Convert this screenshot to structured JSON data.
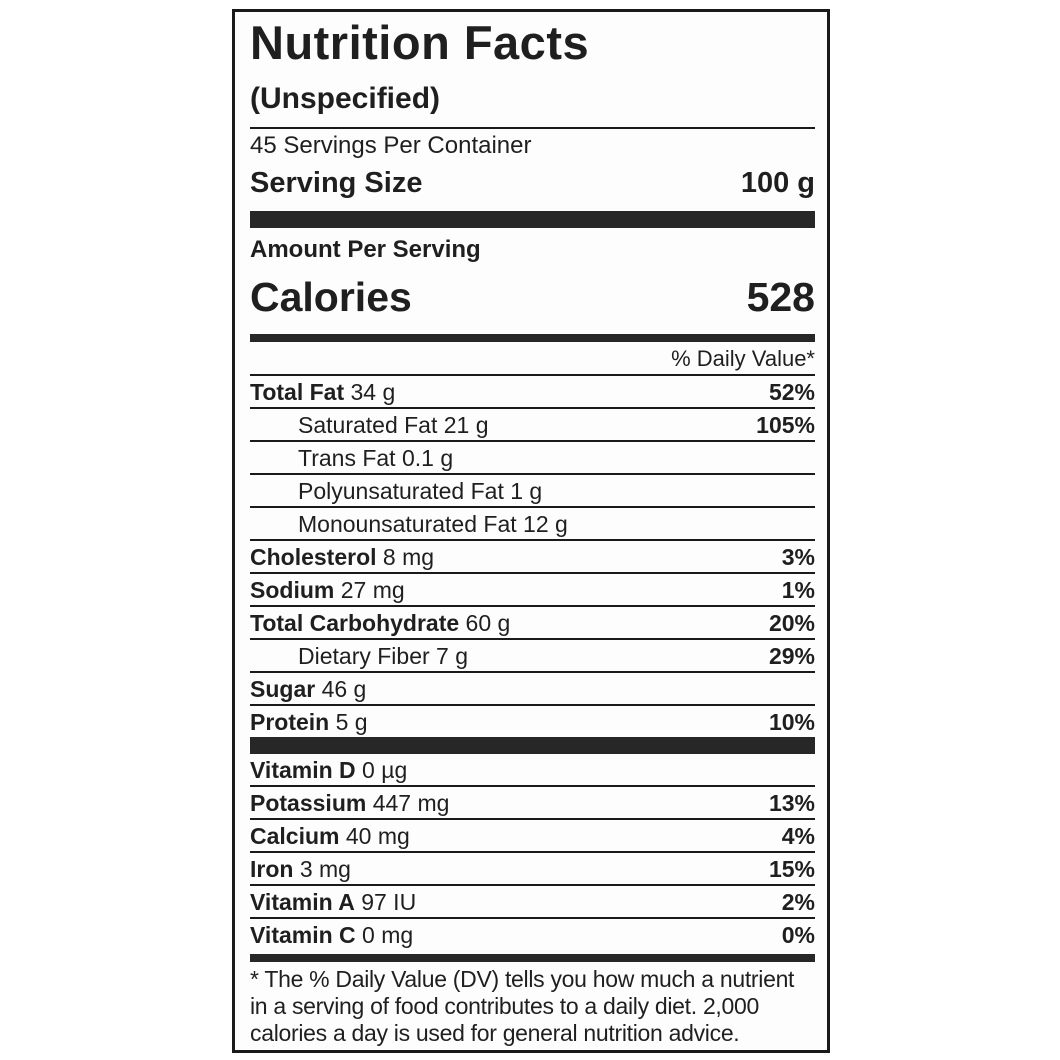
{
  "label": {
    "title": "Nutrition Facts",
    "subtitle": "(Unspecified)",
    "servings_per_container": "45 Servings Per Container",
    "serving_size_label": "Serving Size",
    "serving_size_value": "100 g",
    "amount_per_serving": "Amount Per Serving",
    "calories_label": "Calories",
    "calories_value": "528",
    "daily_value_header": "% Daily Value*",
    "nutrients": [
      {
        "name": "Total Fat",
        "amount": "34 g",
        "dv": "52%",
        "bold": true,
        "indent": false
      },
      {
        "name": "Saturated Fat",
        "amount": "21 g",
        "dv": "105%",
        "bold": false,
        "indent": true
      },
      {
        "name": "Trans Fat",
        "amount": "0.1 g",
        "dv": "",
        "bold": false,
        "indent": true
      },
      {
        "name": "Polyunsaturated Fat",
        "amount": "1 g",
        "dv": "",
        "bold": false,
        "indent": true
      },
      {
        "name": "Monounsaturated Fat",
        "amount": "12 g",
        "dv": "",
        "bold": false,
        "indent": true
      },
      {
        "name": "Cholesterol",
        "amount": "8 mg",
        "dv": "3%",
        "bold": true,
        "indent": false
      },
      {
        "name": "Sodium",
        "amount": "27 mg",
        "dv": "1%",
        "bold": true,
        "indent": false
      },
      {
        "name": "Total Carbohydrate",
        "amount": "60 g",
        "dv": "20%",
        "bold": true,
        "indent": false
      },
      {
        "name": "Dietary Fiber",
        "amount": "7 g",
        "dv": "29%",
        "bold": false,
        "indent": true
      },
      {
        "name": "Sugar",
        "amount": "46 g",
        "dv": "",
        "bold": true,
        "indent": false
      },
      {
        "name": "Protein",
        "amount": "5 g",
        "dv": "10%",
        "bold": true,
        "indent": false
      }
    ],
    "micronutrients": [
      {
        "name": "Vitamin D",
        "amount": "0 µg",
        "dv": "",
        "bold": true,
        "indent": false
      },
      {
        "name": "Potassium",
        "amount": "447 mg",
        "dv": "13%",
        "bold": true,
        "indent": false
      },
      {
        "name": "Calcium",
        "amount": "40 mg",
        "dv": "4%",
        "bold": true,
        "indent": false
      },
      {
        "name": "Iron",
        "amount": "3 mg",
        "dv": "15%",
        "bold": true,
        "indent": false
      },
      {
        "name": "Vitamin A",
        "amount": "97 IU",
        "dv": "2%",
        "bold": true,
        "indent": false
      },
      {
        "name": "Vitamin C",
        "amount": "0 mg",
        "dv": "0%",
        "bold": true,
        "indent": false
      }
    ],
    "footnote": "* The % Daily Value (DV) tells you how much a nutrient in a serving of food contributes to a daily diet. 2,000 calories a day is used for general nutrition advice.",
    "colors": {
      "text": "#1f1f1f",
      "bar": "#272727",
      "border": "#1a1a1a",
      "background": "#fdfdfd"
    }
  }
}
